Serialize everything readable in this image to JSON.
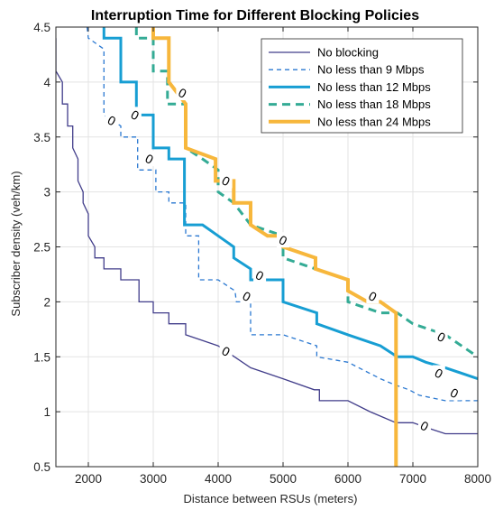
{
  "chart_data": {
    "type": "line",
    "title": "Interruption Time for Different Blocking Policies",
    "xlabel": "Distance between RSUs (meters)",
    "ylabel": "Subscriber density (veh/km)",
    "xlim": [
      1500,
      8000
    ],
    "ylim": [
      0.5,
      4.5
    ],
    "xticks": [
      "2000",
      "3000",
      "4000",
      "5000",
      "6000",
      "7000",
      "8000"
    ],
    "yticks": [
      "0.5",
      "1",
      "1.5",
      "2",
      "2.5",
      "3",
      "3.5",
      "4",
      "4.5"
    ],
    "grid": true,
    "legend_position": "top-right",
    "contour_label": "0",
    "series": [
      {
        "name": "No blocking",
        "color": "#413d8a",
        "style": "solid",
        "width": 1.3,
        "points": [
          [
            1500,
            4.4
          ],
          [
            1500,
            4.1
          ],
          [
            1600,
            4.0
          ],
          [
            1600,
            3.8
          ],
          [
            1680,
            3.8
          ],
          [
            1680,
            3.6
          ],
          [
            1760,
            3.6
          ],
          [
            1760,
            3.4
          ],
          [
            1840,
            3.3
          ],
          [
            1840,
            3.1
          ],
          [
            1920,
            3.0
          ],
          [
            1920,
            2.9
          ],
          [
            2000,
            2.8
          ],
          [
            2000,
            2.6
          ],
          [
            2100,
            2.5
          ],
          [
            2100,
            2.4
          ],
          [
            2240,
            2.4
          ],
          [
            2240,
            2.3
          ],
          [
            2500,
            2.3
          ],
          [
            2500,
            2.2
          ],
          [
            2780,
            2.2
          ],
          [
            2780,
            2.0
          ],
          [
            3000,
            2.0
          ],
          [
            3000,
            1.9
          ],
          [
            3240,
            1.9
          ],
          [
            3240,
            1.8
          ],
          [
            3500,
            1.8
          ],
          [
            3500,
            1.7
          ],
          [
            4000,
            1.6
          ],
          [
            4500,
            1.4
          ],
          [
            5000,
            1.3
          ],
          [
            5480,
            1.2
          ],
          [
            5560,
            1.2
          ],
          [
            5560,
            1.1
          ],
          [
            6000,
            1.1
          ],
          [
            6340,
            1.0
          ],
          [
            6740,
            0.9
          ],
          [
            7000,
            0.9
          ],
          [
            7240,
            0.85
          ],
          [
            7500,
            0.8
          ],
          [
            8000,
            0.8
          ]
        ],
        "zero_labels": [
          [
            4120,
            1.55
          ],
          [
            7180,
            0.87
          ]
        ]
      },
      {
        "name": "No less than 9 Mbps",
        "color": "#2a78d1",
        "style": "dashed",
        "width": 1.3,
        "points": [
          [
            1980,
            4.5
          ],
          [
            2000,
            4.4
          ],
          [
            2240,
            4.3
          ],
          [
            2240,
            3.7
          ],
          [
            2500,
            3.6
          ],
          [
            2500,
            3.5
          ],
          [
            2760,
            3.5
          ],
          [
            2760,
            3.2
          ],
          [
            3040,
            3.2
          ],
          [
            3040,
            3.0
          ],
          [
            3240,
            3.0
          ],
          [
            3240,
            2.9
          ],
          [
            3500,
            2.9
          ],
          [
            3500,
            2.6
          ],
          [
            3700,
            2.6
          ],
          [
            3700,
            2.2
          ],
          [
            4000,
            2.2
          ],
          [
            4260,
            2.1
          ],
          [
            4280,
            2.0
          ],
          [
            4500,
            2.0
          ],
          [
            4500,
            1.7
          ],
          [
            5000,
            1.7
          ],
          [
            5520,
            1.6
          ],
          [
            5520,
            1.5
          ],
          [
            6000,
            1.45
          ],
          [
            6500,
            1.3
          ],
          [
            6700,
            1.25
          ],
          [
            6940,
            1.2
          ],
          [
            7100,
            1.15
          ],
          [
            7500,
            1.1
          ],
          [
            8000,
            1.1
          ]
        ],
        "zero_labels": [
          [
            2360,
            3.65
          ],
          [
            2940,
            3.3
          ],
          [
            4440,
            2.05
          ],
          [
            7640,
            1.17
          ]
        ]
      },
      {
        "name": "No less than 12 Mbps",
        "color": "#179ed3",
        "style": "solid",
        "width": 3,
        "points": [
          [
            2240,
            4.5
          ],
          [
            2240,
            4.4
          ],
          [
            2500,
            4.4
          ],
          [
            2500,
            4.0
          ],
          [
            2740,
            4.0
          ],
          [
            2740,
            3.7
          ],
          [
            3000,
            3.7
          ],
          [
            3000,
            3.4
          ],
          [
            3240,
            3.4
          ],
          [
            3240,
            3.3
          ],
          [
            3480,
            3.3
          ],
          [
            3480,
            2.7
          ],
          [
            3760,
            2.7
          ],
          [
            4000,
            2.6
          ],
          [
            4240,
            2.5
          ],
          [
            4240,
            2.4
          ],
          [
            4500,
            2.3
          ],
          [
            4500,
            2.2
          ],
          [
            5000,
            2.2
          ],
          [
            5000,
            2.0
          ],
          [
            5520,
            1.9
          ],
          [
            5520,
            1.8
          ],
          [
            6000,
            1.7
          ],
          [
            6500,
            1.6
          ],
          [
            6760,
            1.5
          ],
          [
            7000,
            1.5
          ],
          [
            7200,
            1.45
          ],
          [
            7500,
            1.4
          ],
          [
            8000,
            1.3
          ]
        ],
        "zero_labels": [
          [
            2720,
            3.7
          ],
          [
            4640,
            2.24
          ],
          [
            7400,
            1.35
          ]
        ]
      },
      {
        "name": "No less than 18 Mbps",
        "color": "#34ab95",
        "style": "dashed",
        "width": 3,
        "points": [
          [
            2740,
            4.5
          ],
          [
            2740,
            4.4
          ],
          [
            3000,
            4.4
          ],
          [
            3000,
            4.1
          ],
          [
            3220,
            4.1
          ],
          [
            3220,
            3.8
          ],
          [
            3500,
            3.8
          ],
          [
            3500,
            3.4
          ],
          [
            3760,
            3.3
          ],
          [
            4000,
            3.2
          ],
          [
            4000,
            3.0
          ],
          [
            4240,
            2.9
          ],
          [
            4500,
            2.7
          ],
          [
            5000,
            2.6
          ],
          [
            5000,
            2.4
          ],
          [
            5500,
            2.3
          ],
          [
            6000,
            2.2
          ],
          [
            6000,
            2.0
          ],
          [
            6500,
            1.9
          ],
          [
            6760,
            1.9
          ],
          [
            7000,
            1.8
          ],
          [
            7500,
            1.7
          ],
          [
            8000,
            1.5
          ]
        ],
        "zero_labels": [
          [
            5000,
            2.56
          ],
          [
            7440,
            1.68
          ]
        ]
      },
      {
        "name": "No less than 24 Mbps",
        "color": "#f7b73c",
        "style": "solid",
        "width": 4,
        "points": [
          [
            3000,
            4.5
          ],
          [
            3000,
            4.4
          ],
          [
            3240,
            4.4
          ],
          [
            3240,
            4.0
          ],
          [
            3500,
            3.8
          ],
          [
            3500,
            3.4
          ],
          [
            3960,
            3.3
          ],
          [
            3960,
            3.1
          ],
          [
            4240,
            3.1
          ],
          [
            4240,
            2.9
          ],
          [
            4500,
            2.9
          ],
          [
            4500,
            2.7
          ],
          [
            4760,
            2.6
          ],
          [
            5000,
            2.6
          ],
          [
            5000,
            2.5
          ],
          [
            5500,
            2.4
          ],
          [
            5500,
            2.3
          ],
          [
            6000,
            2.2
          ],
          [
            6000,
            2.1
          ],
          [
            6300,
            2.0
          ],
          [
            6500,
            2.0
          ],
          [
            6740,
            1.9
          ],
          [
            6740,
            0.5
          ]
        ],
        "zero_labels": [
          [
            3450,
            3.9
          ],
          [
            4120,
            3.1
          ],
          [
            6380,
            2.05
          ]
        ]
      }
    ]
  }
}
